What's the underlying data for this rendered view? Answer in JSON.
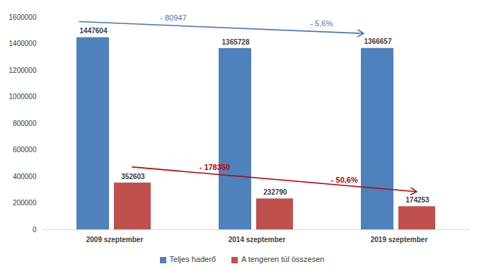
{
  "chart_data": {
    "type": "bar",
    "categories": [
      "2009 szeptember",
      "2014 szeptember",
      "2019 szeptember"
    ],
    "series": [
      {
        "name": "Teljes haderő",
        "color": "#4f81bd",
        "values": [
          1447604,
          1365728,
          1366657
        ]
      },
      {
        "name": "A tengeren túl összesen",
        "color": "#c0504d",
        "values": [
          352603,
          232790,
          174253
        ]
      }
    ],
    "ylim": [
      0,
      1600000
    ],
    "yticks": [
      0,
      200000,
      400000,
      600000,
      800000,
      1000000,
      1200000,
      1400000,
      1600000
    ],
    "grid": false,
    "data_labels": true,
    "legend": "bottom",
    "annotations": [
      {
        "series": "Teljes haderő",
        "texts": [
          "- 80947",
          "- 5,6%"
        ],
        "color": "#4472c4"
      },
      {
        "series": "A tengeren túl összesen",
        "texts": [
          "- 178350",
          "- 50,6%"
        ],
        "color": "#c00000"
      }
    ]
  }
}
